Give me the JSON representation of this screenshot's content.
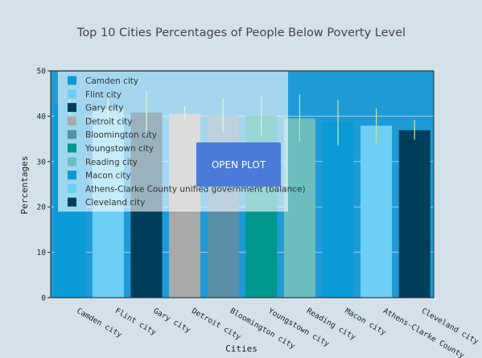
{
  "open_plot_label": "OPEN PLOT",
  "chart_data": {
    "type": "bar",
    "title": "Top 10 Cities Percentages of People Below Poverty Level",
    "xlabel": "Cities",
    "ylabel": "Percentages",
    "ylim": [
      0,
      50
    ],
    "yticks": [
      0,
      10,
      20,
      30,
      40,
      50
    ],
    "grid": true,
    "legend_position": "top-left",
    "categories": [
      "Camden city",
      "Flint city",
      "Gary city",
      "Detroit city",
      "Bloomington city",
      "Youngstown city",
      "Reading city",
      "Macon city",
      "Athens-Clarke County unified government (balance)",
      "Cleveland city"
    ],
    "tick_labels": [
      "Camden city",
      "Flint city",
      "Gary city",
      "Detroit city",
      "Bloomington city",
      "Youngstown city",
      "Reading city",
      "Macon city",
      "Athens-Clarke County",
      "Cleveland city"
    ],
    "values": [
      42.6,
      41.5,
      40.8,
      40.5,
      40.2,
      40.1,
      39.5,
      38.6,
      37.9,
      36.9
    ],
    "errors": [
      {
        "low": 40.1,
        "high": 45.2
      },
      {
        "low": 38.8,
        "high": 44.1
      },
      {
        "low": 36.0,
        "high": 45.6
      },
      {
        "low": 39.0,
        "high": 42.2
      },
      {
        "low": 36.5,
        "high": 44.0
      },
      {
        "low": 35.8,
        "high": 44.6
      },
      {
        "low": 34.3,
        "high": 44.8
      },
      {
        "low": 33.6,
        "high": 43.6
      },
      {
        "low": 34.1,
        "high": 41.7
      },
      {
        "low": 34.8,
        "high": 39.2
      }
    ],
    "colors": [
      "#0a9ad6",
      "#6dcff3",
      "#003f5c",
      "#a9a9a9",
      "#5a8fa8",
      "#00978e",
      "#6bbebd",
      "#0a9ad6",
      "#6dcff3",
      "#003f5c"
    ],
    "legend": [
      "Camden city",
      "Flint city",
      "Gary city",
      "Detroit city",
      "Bloomington city",
      "Youngstown city",
      "Reading city",
      "Macon city",
      "Athens-Clarke County unified government (balance)",
      "Cleveland city"
    ],
    "error_color": "#c9e69a"
  }
}
